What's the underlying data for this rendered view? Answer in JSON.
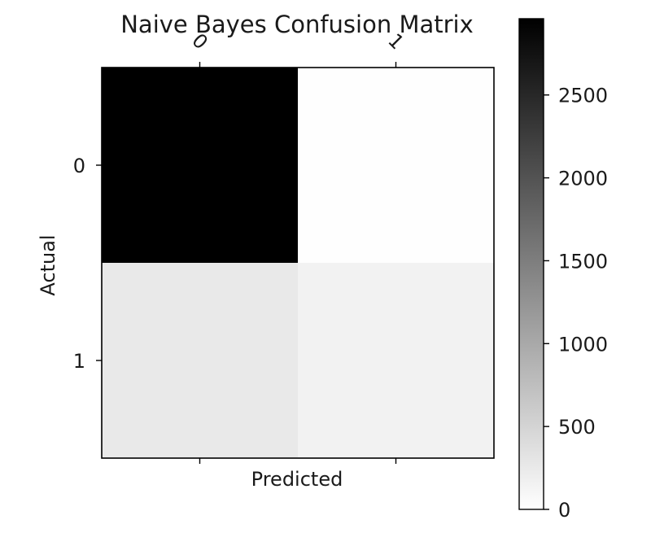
{
  "chart_data": {
    "type": "heatmap",
    "title": "Naive Bayes Confusion Matrix",
    "xlabel": "Predicted",
    "ylabel": "Actual",
    "x_categories": [
      "0",
      "1"
    ],
    "y_categories": [
      "0",
      "1"
    ],
    "values": [
      [
        2960,
        10
      ],
      [
        260,
        150
      ]
    ],
    "colormap": "gray_r",
    "colorbar": {
      "range": [
        0,
        2960
      ],
      "ticks": [
        0,
        500,
        1000,
        1500,
        2000,
        2500
      ]
    },
    "xtick_rotation_deg": 45,
    "xticks_position": "top"
  }
}
